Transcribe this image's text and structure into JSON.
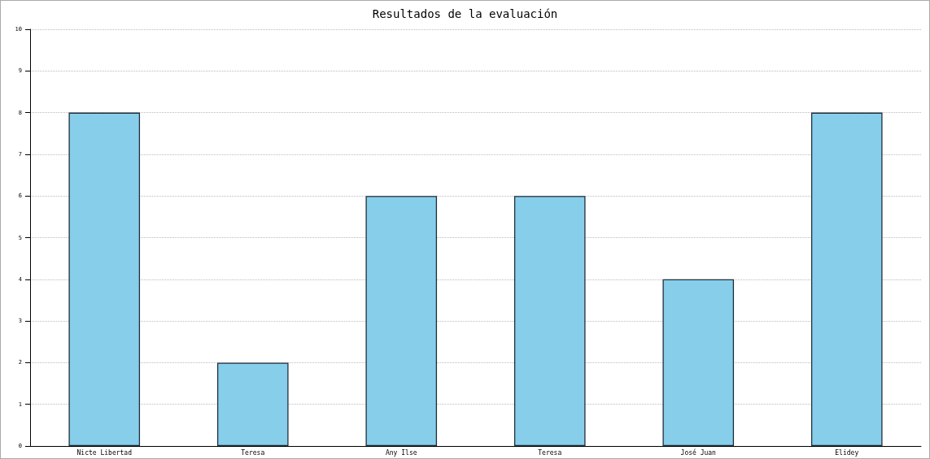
{
  "chart_data": {
    "type": "bar",
    "title": "Resultados de la evaluación",
    "categories": [
      "Nicte Libertad",
      "Teresa",
      "Any Ilse",
      "Teresa",
      "José Juan",
      "Elidey"
    ],
    "values": [
      8,
      2,
      6,
      6,
      4,
      8
    ],
    "color": "#87ceeb",
    "ylim": [
      0,
      10
    ],
    "yticks": [
      0,
      1,
      2,
      3,
      4,
      5,
      6,
      7,
      8,
      9,
      10
    ],
    "grid": "y"
  }
}
